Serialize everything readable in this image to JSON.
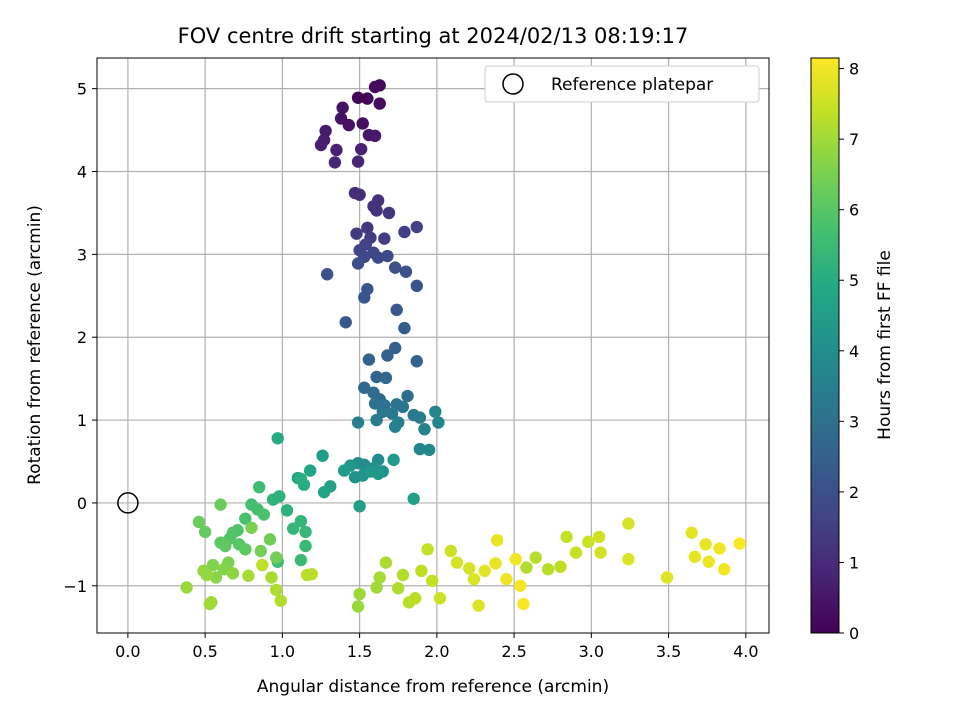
{
  "chart_data": {
    "type": "scatter",
    "title": "FOV centre drift starting at 2024/02/13 08:19:17",
    "xlabel": "Angular distance from reference (arcmin)",
    "ylabel": "Rotation from reference (arcmin)",
    "xlim": [
      -0.2,
      4.15
    ],
    "ylim": [
      -1.57,
      5.37
    ],
    "xticks": [
      0.0,
      0.5,
      1.0,
      1.5,
      2.0,
      2.5,
      3.0,
      3.5,
      4.0
    ],
    "yticks": [
      -1,
      0,
      1,
      2,
      3,
      4,
      5
    ],
    "xtick_labels": [
      "0.0",
      "0.5",
      "1.0",
      "1.5",
      "2.0",
      "2.5",
      "3.0",
      "3.5",
      "4.0"
    ],
    "ytick_labels": [
      "−1",
      "0",
      "1",
      "2",
      "3",
      "4",
      "5"
    ],
    "grid": true,
    "legend": {
      "placement": "top-right",
      "entries": [
        "Reference platepar"
      ]
    },
    "reference_point": {
      "x": 0.0,
      "y": 0.0,
      "marker": "open-circle"
    },
    "colorbar": {
      "label": "Hours from first FF file",
      "colormap": "viridis",
      "range": [
        0,
        8.15
      ],
      "ticks": [
        0,
        1,
        2,
        3,
        4,
        5,
        6,
        7,
        8
      ],
      "tick_labels": [
        "0",
        "1",
        "2",
        "3",
        "4",
        "5",
        "6",
        "7",
        "8"
      ]
    },
    "points": [
      [
        1.49,
        4.89,
        0.05
      ],
      [
        1.55,
        4.88,
        0.1
      ],
      [
        1.6,
        5.02,
        0.15
      ],
      [
        1.63,
        5.04,
        0.2
      ],
      [
        1.63,
        4.82,
        0.25
      ],
      [
        1.52,
        4.58,
        0.3
      ],
      [
        1.43,
        4.56,
        0.35
      ],
      [
        1.38,
        4.64,
        0.4
      ],
      [
        1.39,
        4.77,
        0.45
      ],
      [
        1.56,
        4.44,
        0.5
      ],
      [
        1.6,
        4.43,
        0.55
      ],
      [
        1.28,
        4.49,
        0.6
      ],
      [
        1.27,
        4.38,
        0.65
      ],
      [
        1.25,
        4.32,
        0.7
      ],
      [
        1.35,
        4.26,
        0.75
      ],
      [
        1.51,
        4.27,
        0.8
      ],
      [
        1.49,
        4.12,
        0.85
      ],
      [
        1.34,
        4.11,
        0.9
      ],
      [
        1.47,
        3.74,
        1.0
      ],
      [
        1.5,
        3.72,
        1.05
      ],
      [
        1.62,
        3.65,
        1.1
      ],
      [
        1.59,
        3.58,
        1.15
      ],
      [
        1.61,
        3.53,
        1.2
      ],
      [
        1.69,
        3.5,
        1.25
      ],
      [
        1.55,
        3.32,
        1.3
      ],
      [
        1.48,
        3.25,
        1.35
      ],
      [
        1.57,
        3.2,
        1.4
      ],
      [
        1.66,
        3.19,
        1.45
      ],
      [
        1.79,
        3.27,
        1.5
      ],
      [
        1.87,
        3.33,
        1.55
      ],
      [
        1.54,
        3.12,
        1.6
      ],
      [
        1.5,
        3.05,
        1.65
      ],
      [
        1.59,
        3.02,
        1.7
      ],
      [
        1.53,
        2.97,
        1.75
      ],
      [
        1.62,
        2.96,
        1.8
      ],
      [
        1.68,
        2.98,
        1.85
      ],
      [
        1.49,
        2.89,
        1.9
      ],
      [
        1.73,
        2.84,
        1.95
      ],
      [
        1.8,
        2.79,
        2.0
      ],
      [
        1.29,
        2.76,
        2.05
      ],
      [
        1.87,
        2.62,
        2.1
      ],
      [
        1.55,
        2.58,
        2.15
      ],
      [
        1.53,
        2.48,
        2.2
      ],
      [
        1.74,
        2.33,
        2.25
      ],
      [
        1.41,
        2.18,
        2.3
      ],
      [
        1.79,
        2.11,
        2.35
      ],
      [
        1.73,
        1.87,
        2.45
      ],
      [
        1.68,
        1.78,
        2.5
      ],
      [
        1.56,
        1.73,
        2.55
      ],
      [
        1.87,
        1.71,
        2.6
      ],
      [
        1.61,
        1.52,
        2.65
      ],
      [
        1.67,
        1.51,
        2.7
      ],
      [
        1.53,
        1.39,
        2.75
      ],
      [
        1.59,
        1.33,
        2.8
      ],
      [
        1.63,
        1.25,
        2.85
      ],
      [
        1.81,
        1.29,
        2.9
      ],
      [
        1.6,
        1.2,
        3.0
      ],
      [
        1.66,
        1.18,
        3.05
      ],
      [
        1.74,
        1.19,
        3.1
      ],
      [
        1.78,
        1.16,
        3.15
      ],
      [
        1.65,
        1.1,
        3.2
      ],
      [
        1.71,
        1.08,
        3.25
      ],
      [
        1.85,
        1.06,
        3.3
      ],
      [
        1.89,
        1.03,
        3.35
      ],
      [
        1.61,
        1.0,
        3.4
      ],
      [
        1.49,
        0.97,
        3.45
      ],
      [
        1.75,
        0.97,
        3.5
      ],
      [
        1.73,
        0.92,
        3.55
      ],
      [
        1.92,
        0.89,
        3.6
      ],
      [
        1.99,
        1.1,
        3.65
      ],
      [
        2.01,
        0.97,
        3.7
      ],
      [
        1.89,
        0.65,
        3.75
      ],
      [
        1.95,
        0.64,
        3.8
      ],
      [
        1.53,
        0.46,
        3.85
      ],
      [
        1.49,
        0.48,
        3.9
      ],
      [
        1.62,
        0.52,
        3.95
      ],
      [
        1.59,
        0.42,
        4.0
      ],
      [
        1.56,
        0.41,
        4.05
      ],
      [
        1.65,
        0.38,
        4.1
      ],
      [
        1.47,
        0.31,
        4.15
      ],
      [
        1.52,
        0.33,
        4.2
      ],
      [
        1.62,
        0.35,
        4.25
      ],
      [
        1.44,
        0.45,
        4.3
      ],
      [
        1.57,
        0.38,
        4.35
      ],
      [
        1.72,
        0.52,
        4.4
      ],
      [
        1.4,
        0.39,
        4.45
      ],
      [
        1.26,
        0.57,
        4.5
      ],
      [
        1.5,
        -0.04,
        4.55
      ],
      [
        1.85,
        0.05,
        4.6
      ],
      [
        1.31,
        0.2,
        4.65
      ],
      [
        1.27,
        0.13,
        4.7
      ],
      [
        1.18,
        0.39,
        4.75
      ],
      [
        1.1,
        0.3,
        4.8
      ],
      [
        0.97,
        0.78,
        5.0
      ],
      [
        1.14,
        0.22,
        5.05
      ],
      [
        1.12,
        0.29,
        5.1
      ],
      [
        0.98,
        0.08,
        5.15
      ],
      [
        1.03,
        -0.09,
        5.2
      ],
      [
        0.94,
        0.04,
        5.25
      ],
      [
        1.12,
        -0.22,
        5.3
      ],
      [
        1.07,
        -0.31,
        5.35
      ],
      [
        1.15,
        -0.35,
        5.4
      ],
      [
        1.15,
        -0.52,
        5.45
      ],
      [
        1.12,
        -0.69,
        5.5
      ],
      [
        0.97,
        -0.71,
        5.55
      ],
      [
        0.85,
        0.19,
        5.6
      ],
      [
        0.8,
        -0.02,
        5.65
      ],
      [
        0.84,
        -0.08,
        5.7
      ],
      [
        0.76,
        -0.19,
        5.75
      ],
      [
        0.88,
        -0.14,
        5.8
      ],
      [
        0.71,
        -0.33,
        5.85
      ],
      [
        0.68,
        -0.36,
        5.9
      ],
      [
        0.66,
        -0.43,
        5.95
      ],
      [
        0.72,
        -0.5,
        6.0
      ],
      [
        0.76,
        -0.56,
        6.05
      ],
      [
        0.6,
        -0.48,
        6.1
      ],
      [
        0.63,
        -0.52,
        6.15
      ],
      [
        0.5,
        -0.35,
        6.2
      ],
      [
        0.46,
        -0.23,
        6.25
      ],
      [
        0.6,
        -0.02,
        6.3
      ],
      [
        0.92,
        -0.44,
        6.35
      ],
      [
        0.96,
        -0.66,
        6.4
      ],
      [
        0.86,
        -0.58,
        6.45
      ],
      [
        0.8,
        -0.3,
        6.5
      ],
      [
        0.65,
        -0.72,
        6.55
      ],
      [
        0.55,
        -0.75,
        6.6
      ],
      [
        0.62,
        -0.8,
        6.65
      ],
      [
        0.57,
        -0.9,
        6.7
      ],
      [
        0.68,
        -0.85,
        6.75
      ],
      [
        0.49,
        -0.82,
        6.8
      ],
      [
        0.51,
        -0.87,
        6.85
      ],
      [
        0.38,
        -1.02,
        6.9
      ],
      [
        0.54,
        -1.2,
        6.95
      ],
      [
        0.53,
        -1.22,
        7.0
      ],
      [
        0.78,
        -0.88,
        7.05
      ],
      [
        0.93,
        -0.9,
        7.1
      ],
      [
        0.96,
        -1.05,
        7.15
      ],
      [
        0.99,
        -1.18,
        7.2
      ],
      [
        1.16,
        -0.87,
        7.25
      ],
      [
        1.19,
        -0.86,
        7.3
      ],
      [
        0.87,
        -0.75,
        7.35
      ],
      [
        1.49,
        -1.25,
        6.9
      ],
      [
        1.5,
        -1.1,
        6.95
      ],
      [
        1.61,
        -1.02,
        7.0
      ],
      [
        1.63,
        -0.9,
        7.05
      ],
      [
        1.67,
        -0.72,
        7.1
      ],
      [
        1.75,
        -1.03,
        7.15
      ],
      [
        1.78,
        -0.87,
        7.2
      ],
      [
        1.82,
        -1.2,
        7.25
      ],
      [
        1.86,
        -1.15,
        7.3
      ],
      [
        1.9,
        -0.82,
        7.35
      ],
      [
        1.94,
        -0.56,
        7.4
      ],
      [
        1.97,
        -0.94,
        7.45
      ],
      [
        2.02,
        -1.15,
        7.5
      ],
      [
        2.09,
        -0.58,
        7.55
      ],
      [
        2.13,
        -0.72,
        7.6
      ],
      [
        2.21,
        -0.79,
        7.65
      ],
      [
        2.24,
        -0.92,
        7.7
      ],
      [
        2.27,
        -1.24,
        7.75
      ],
      [
        2.31,
        -0.82,
        7.8
      ],
      [
        2.38,
        -0.73,
        7.85
      ],
      [
        2.39,
        -0.45,
        7.9
      ],
      [
        2.45,
        -0.92,
        7.95
      ],
      [
        2.51,
        -0.68,
        8.0
      ],
      [
        2.54,
        -1.0,
        8.05
      ],
      [
        2.56,
        -1.22,
        8.1
      ]
    ],
    "points_right": [
      [
        2.58,
        -0.78,
        7.2
      ],
      [
        2.64,
        -0.66,
        7.25
      ],
      [
        2.72,
        -0.8,
        7.3
      ],
      [
        2.8,
        -0.77,
        7.35
      ],
      [
        2.84,
        -0.41,
        7.4
      ],
      [
        2.9,
        -0.6,
        7.45
      ],
      [
        2.98,
        -0.47,
        7.5
      ],
      [
        3.05,
        -0.41,
        7.55
      ],
      [
        3.06,
        -0.6,
        7.6
      ],
      [
        3.24,
        -0.25,
        7.65
      ],
      [
        3.24,
        -0.68,
        7.7
      ],
      [
        3.49,
        -0.9,
        7.75
      ],
      [
        3.65,
        -0.36,
        7.8
      ],
      [
        3.67,
        -0.65,
        7.85
      ],
      [
        3.74,
        -0.5,
        7.9
      ],
      [
        3.76,
        -0.71,
        7.95
      ],
      [
        3.83,
        -0.55,
        8.0
      ],
      [
        3.86,
        -0.8,
        8.05
      ],
      [
        3.96,
        -0.49,
        8.1
      ]
    ]
  }
}
